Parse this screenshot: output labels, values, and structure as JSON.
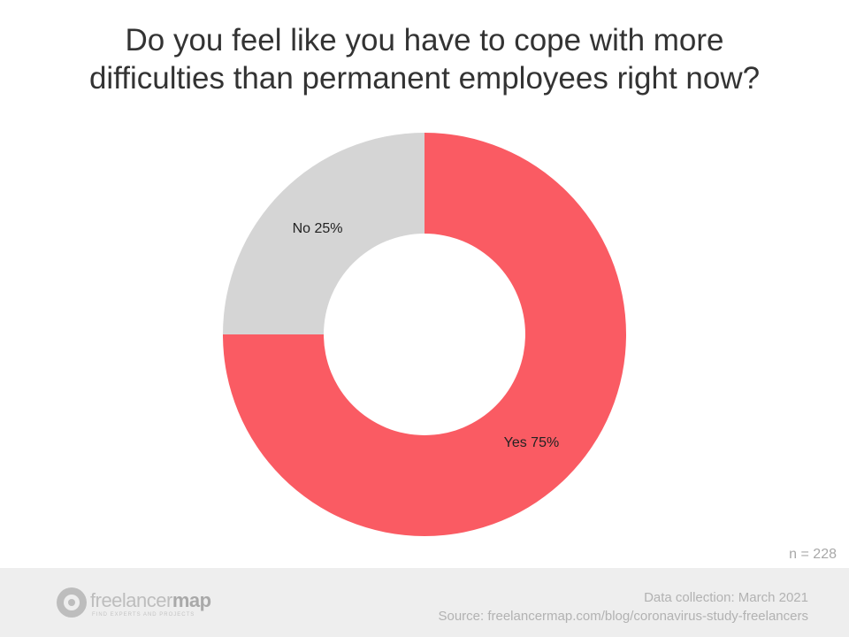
{
  "chart_data": {
    "type": "pie",
    "title": "Do you feel like you have to cope with more difficulties than permanent employees right now?",
    "title_lines": [
      "Do you feel like you have to cope with more",
      "difficulties than permanent employees right now?"
    ],
    "slices": [
      {
        "label": "Yes 75%",
        "category": "Yes",
        "value": 75,
        "color": "#fa5b63"
      },
      {
        "label": "No 25%",
        "category": "No",
        "value": 25,
        "color": "#d5d5d5"
      }
    ],
    "donut": true,
    "legend": "none"
  },
  "sample_size": "n = 228",
  "footer": {
    "logo_text_light": "freelancer",
    "logo_text_bold": "map",
    "logo_tagline": "FIND EXPERTS AND PROJECTS",
    "data_collection": "Data collection: March 2021",
    "source": "Source: freelancermap.com/blog/coronavirus-study-freelancers"
  },
  "colors": {
    "yes": "#fa5b63",
    "no": "#d5d5d5",
    "footer_bg": "#eeeeee"
  }
}
